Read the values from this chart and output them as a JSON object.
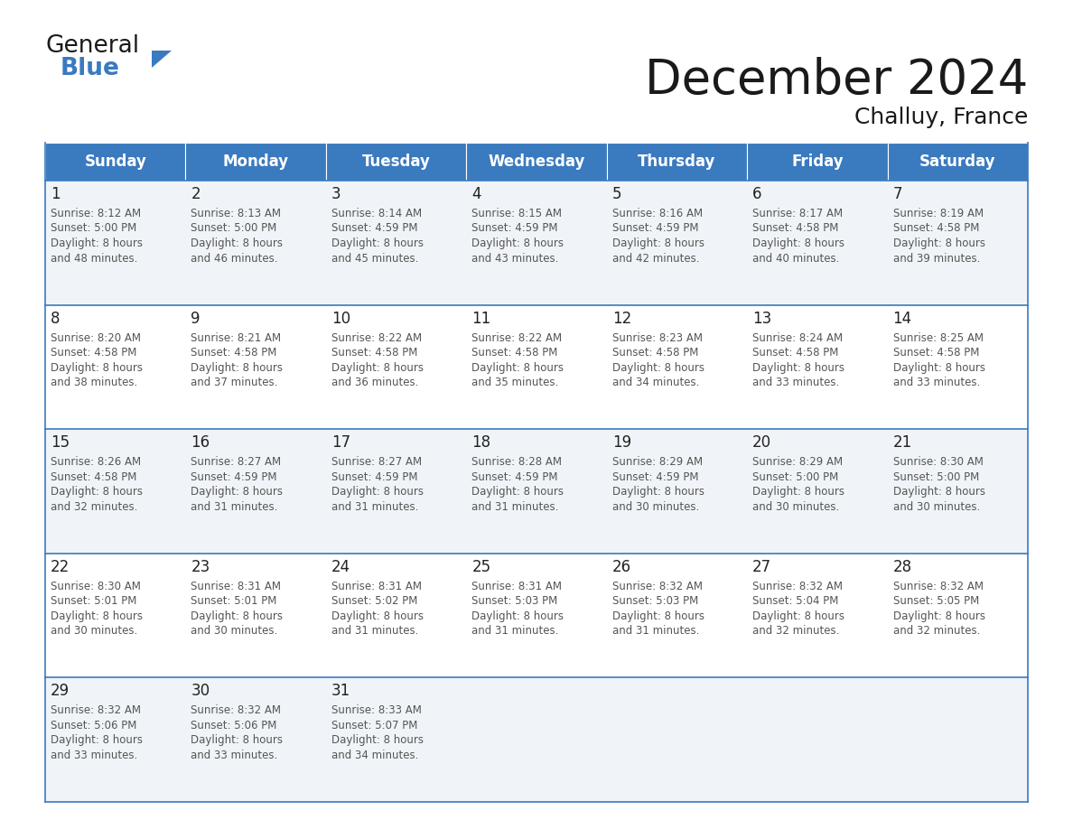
{
  "title": "December 2024",
  "subtitle": "Challuy, France",
  "header_color": "#3a7abf",
  "header_text_color": "#ffffff",
  "days_of_week": [
    "Sunday",
    "Monday",
    "Tuesday",
    "Wednesday",
    "Thursday",
    "Friday",
    "Saturday"
  ],
  "cell_bg_even": "#f0f4f8",
  "cell_bg_odd": "#ffffff",
  "day_num_color": "#222222",
  "text_color": "#555555",
  "border_color": "#3a7abf",
  "logo_general_color": "#1a1a1a",
  "logo_blue_color": "#3a7abf",
  "calendar_data": [
    [
      {
        "day": 1,
        "sunrise": "8:12 AM",
        "sunset": "5:00 PM",
        "daylight": "8 hours and 48 minutes."
      },
      {
        "day": 2,
        "sunrise": "8:13 AM",
        "sunset": "5:00 PM",
        "daylight": "8 hours and 46 minutes."
      },
      {
        "day": 3,
        "sunrise": "8:14 AM",
        "sunset": "4:59 PM",
        "daylight": "8 hours and 45 minutes."
      },
      {
        "day": 4,
        "sunrise": "8:15 AM",
        "sunset": "4:59 PM",
        "daylight": "8 hours and 43 minutes."
      },
      {
        "day": 5,
        "sunrise": "8:16 AM",
        "sunset": "4:59 PM",
        "daylight": "8 hours and 42 minutes."
      },
      {
        "day": 6,
        "sunrise": "8:17 AM",
        "sunset": "4:58 PM",
        "daylight": "8 hours and 40 minutes."
      },
      {
        "day": 7,
        "sunrise": "8:19 AM",
        "sunset": "4:58 PM",
        "daylight": "8 hours and 39 minutes."
      }
    ],
    [
      {
        "day": 8,
        "sunrise": "8:20 AM",
        "sunset": "4:58 PM",
        "daylight": "8 hours and 38 minutes."
      },
      {
        "day": 9,
        "sunrise": "8:21 AM",
        "sunset": "4:58 PM",
        "daylight": "8 hours and 37 minutes."
      },
      {
        "day": 10,
        "sunrise": "8:22 AM",
        "sunset": "4:58 PM",
        "daylight": "8 hours and 36 minutes."
      },
      {
        "day": 11,
        "sunrise": "8:22 AM",
        "sunset": "4:58 PM",
        "daylight": "8 hours and 35 minutes."
      },
      {
        "day": 12,
        "sunrise": "8:23 AM",
        "sunset": "4:58 PM",
        "daylight": "8 hours and 34 minutes."
      },
      {
        "day": 13,
        "sunrise": "8:24 AM",
        "sunset": "4:58 PM",
        "daylight": "8 hours and 33 minutes."
      },
      {
        "day": 14,
        "sunrise": "8:25 AM",
        "sunset": "4:58 PM",
        "daylight": "8 hours and 33 minutes."
      }
    ],
    [
      {
        "day": 15,
        "sunrise": "8:26 AM",
        "sunset": "4:58 PM",
        "daylight": "8 hours and 32 minutes."
      },
      {
        "day": 16,
        "sunrise": "8:27 AM",
        "sunset": "4:59 PM",
        "daylight": "8 hours and 31 minutes."
      },
      {
        "day": 17,
        "sunrise": "8:27 AM",
        "sunset": "4:59 PM",
        "daylight": "8 hours and 31 minutes."
      },
      {
        "day": 18,
        "sunrise": "8:28 AM",
        "sunset": "4:59 PM",
        "daylight": "8 hours and 31 minutes."
      },
      {
        "day": 19,
        "sunrise": "8:29 AM",
        "sunset": "4:59 PM",
        "daylight": "8 hours and 30 minutes."
      },
      {
        "day": 20,
        "sunrise": "8:29 AM",
        "sunset": "5:00 PM",
        "daylight": "8 hours and 30 minutes."
      },
      {
        "day": 21,
        "sunrise": "8:30 AM",
        "sunset": "5:00 PM",
        "daylight": "8 hours and 30 minutes."
      }
    ],
    [
      {
        "day": 22,
        "sunrise": "8:30 AM",
        "sunset": "5:01 PM",
        "daylight": "8 hours and 30 minutes."
      },
      {
        "day": 23,
        "sunrise": "8:31 AM",
        "sunset": "5:01 PM",
        "daylight": "8 hours and 30 minutes."
      },
      {
        "day": 24,
        "sunrise": "8:31 AM",
        "sunset": "5:02 PM",
        "daylight": "8 hours and 31 minutes."
      },
      {
        "day": 25,
        "sunrise": "8:31 AM",
        "sunset": "5:03 PM",
        "daylight": "8 hours and 31 minutes."
      },
      {
        "day": 26,
        "sunrise": "8:32 AM",
        "sunset": "5:03 PM",
        "daylight": "8 hours and 31 minutes."
      },
      {
        "day": 27,
        "sunrise": "8:32 AM",
        "sunset": "5:04 PM",
        "daylight": "8 hours and 32 minutes."
      },
      {
        "day": 28,
        "sunrise": "8:32 AM",
        "sunset": "5:05 PM",
        "daylight": "8 hours and 32 minutes."
      }
    ],
    [
      {
        "day": 29,
        "sunrise": "8:32 AM",
        "sunset": "5:06 PM",
        "daylight": "8 hours and 33 minutes."
      },
      {
        "day": 30,
        "sunrise": "8:32 AM",
        "sunset": "5:06 PM",
        "daylight": "8 hours and 33 minutes."
      },
      {
        "day": 31,
        "sunrise": "8:33 AM",
        "sunset": "5:07 PM",
        "daylight": "8 hours and 34 minutes."
      },
      null,
      null,
      null,
      null
    ]
  ]
}
